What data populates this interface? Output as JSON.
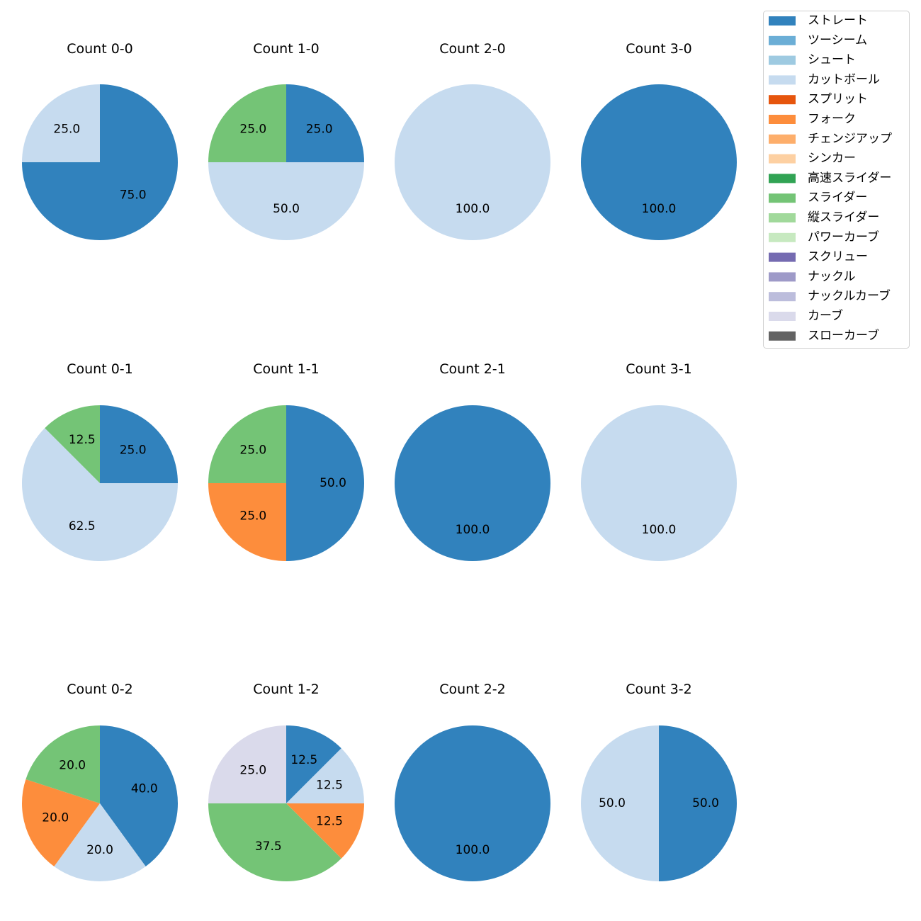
{
  "chart_data": {
    "type": "pie",
    "legend": {
      "placement": "top-right",
      "entries": [
        {
          "name": "ストレート",
          "color": "#3182bd"
        },
        {
          "name": "ツーシーム",
          "color": "#6baed6"
        },
        {
          "name": "シュート",
          "color": "#9ecae1"
        },
        {
          "name": "カットボール",
          "color": "#c6dbef"
        },
        {
          "name": "スプリット",
          "color": "#e6550d"
        },
        {
          "name": "フォーク",
          "color": "#fd8d3c"
        },
        {
          "name": "チェンジアップ",
          "color": "#fdae6b"
        },
        {
          "name": "シンカー",
          "color": "#fdd0a2"
        },
        {
          "name": "高速スライダー",
          "color": "#31a354"
        },
        {
          "name": "スライダー",
          "color": "#74c476"
        },
        {
          "name": "縦スライダー",
          "color": "#a1d99b"
        },
        {
          "name": "パワーカーブ",
          "color": "#c7e9c0"
        },
        {
          "name": "スクリュー",
          "color": "#756bb1"
        },
        {
          "name": "ナックル",
          "color": "#9e9ac8"
        },
        {
          "name": "ナックルカーブ",
          "color": "#bcbddc"
        },
        {
          "name": "カーブ",
          "color": "#dadaeb"
        },
        {
          "name": "スローカーブ",
          "color": "#636363"
        }
      ]
    },
    "pies": [
      {
        "title": "Count 0-0",
        "slices": [
          {
            "name": "ストレート",
            "value": 75.0
          },
          {
            "name": "カットボール",
            "value": 25.0
          }
        ]
      },
      {
        "title": "Count 1-0",
        "slices": [
          {
            "name": "ストレート",
            "value": 25.0
          },
          {
            "name": "カットボール",
            "value": 50.0
          },
          {
            "name": "スライダー",
            "value": 25.0
          }
        ]
      },
      {
        "title": "Count 2-0",
        "slices": [
          {
            "name": "カットボール",
            "value": 100.0
          }
        ]
      },
      {
        "title": "Count 3-0",
        "slices": [
          {
            "name": "ストレート",
            "value": 100.0
          }
        ]
      },
      {
        "title": "Count 0-1",
        "slices": [
          {
            "name": "ストレート",
            "value": 25.0
          },
          {
            "name": "カットボール",
            "value": 62.5
          },
          {
            "name": "スライダー",
            "value": 12.5
          }
        ]
      },
      {
        "title": "Count 1-1",
        "slices": [
          {
            "name": "ストレート",
            "value": 50.0
          },
          {
            "name": "フォーク",
            "value": 25.0
          },
          {
            "name": "スライダー",
            "value": 25.0
          }
        ]
      },
      {
        "title": "Count 2-1",
        "slices": [
          {
            "name": "ストレート",
            "value": 100.0
          }
        ]
      },
      {
        "title": "Count 3-1",
        "slices": [
          {
            "name": "カットボール",
            "value": 100.0
          }
        ]
      },
      {
        "title": "Count 0-2",
        "slices": [
          {
            "name": "ストレート",
            "value": 40.0
          },
          {
            "name": "カットボール",
            "value": 20.0
          },
          {
            "name": "フォーク",
            "value": 20.0
          },
          {
            "name": "スライダー",
            "value": 20.0
          }
        ]
      },
      {
        "title": "Count 1-2",
        "slices": [
          {
            "name": "ストレート",
            "value": 12.5
          },
          {
            "name": "カットボール",
            "value": 12.5
          },
          {
            "name": "フォーク",
            "value": 12.5
          },
          {
            "name": "スライダー",
            "value": 37.5
          },
          {
            "name": "カーブ",
            "value": 25.0
          }
        ]
      },
      {
        "title": "Count 2-2",
        "slices": [
          {
            "name": "ストレート",
            "value": 100.0
          }
        ]
      },
      {
        "title": "Count 3-2",
        "slices": [
          {
            "name": "ストレート",
            "value": 50.0
          },
          {
            "name": "カットボール",
            "value": 50.0
          }
        ]
      }
    ],
    "startangle": 90,
    "direction": "clockwise",
    "label_format": "%.1f"
  }
}
